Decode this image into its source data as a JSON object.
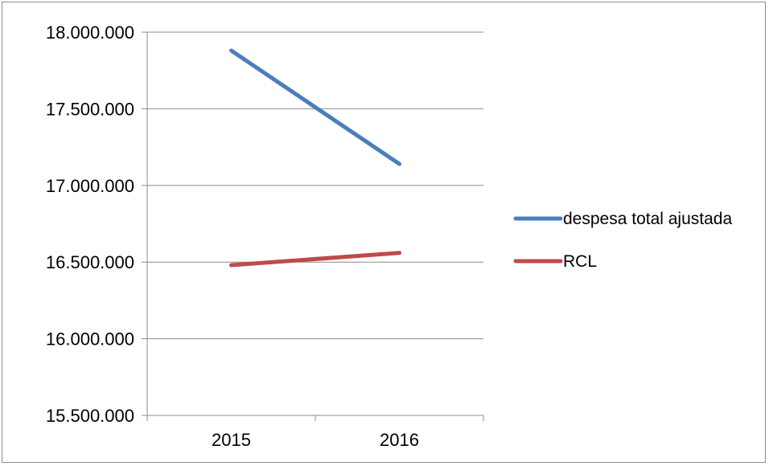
{
  "chart_data": {
    "type": "line",
    "categories": [
      "2015",
      "2016"
    ],
    "series": [
      {
        "name": "despesa total ajustada",
        "values": [
          17880000,
          17140000
        ],
        "color": "#4a7ebb"
      },
      {
        "name": "RCL",
        "values": [
          16480000,
          16560000
        ],
        "color": "#be4b48"
      }
    ],
    "ylim": [
      15500000,
      18000000
    ],
    "yticks": [
      15500000,
      16000000,
      16500000,
      17000000,
      17500000,
      18000000
    ],
    "ytick_labels": [
      "15.500.000",
      "16.000.000",
      "16.500.000",
      "17.000.000",
      "17.500.000",
      "18.000.000"
    ],
    "grid": true,
    "legend": "right",
    "gridline_color": "#8c8c8c"
  }
}
